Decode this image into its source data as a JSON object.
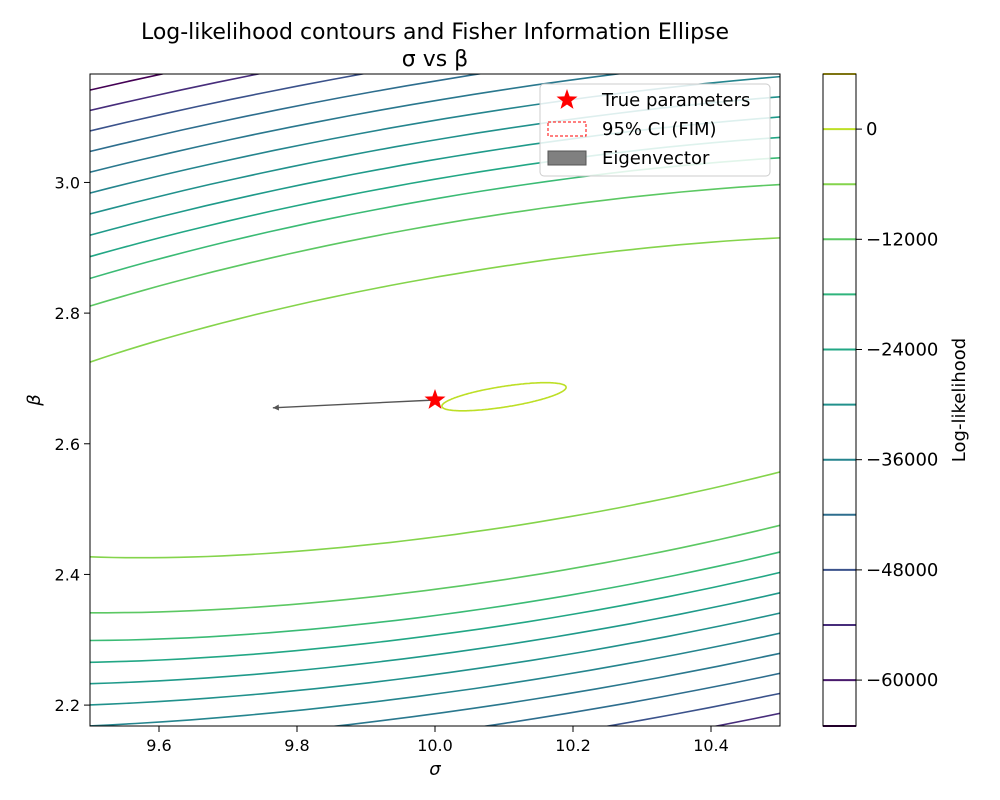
{
  "chart_data": {
    "type": "contour",
    "title": "Log-likelihood contours and Fisher Information Ellipse",
    "subtitle": "σ vs β",
    "xlabel": "σ",
    "ylabel": "β",
    "xlim": [
      9.5,
      10.5
    ],
    "ylim": [
      2.168,
      3.166
    ],
    "x_ticks": [
      "9.6",
      "9.8",
      "10.0",
      "10.2",
      "10.4"
    ],
    "y_ticks": [
      "2.2",
      "2.4",
      "2.6",
      "2.8",
      "3.0"
    ],
    "grid": false,
    "legend_position": "top-right",
    "legend": [
      {
        "label": "True parameters",
        "marker": "star",
        "color": "#ff0000"
      },
      {
        "label": "95% CI (FIM)",
        "marker": "dashed-box",
        "color": "#ff0000"
      },
      {
        "label": "Eigenvector",
        "marker": "filled-box",
        "color": "#808080"
      }
    ],
    "true_parameters": {
      "sigma": 10.0,
      "beta": 2.667
    },
    "eigenvector": {
      "from": [
        10.0,
        2.667
      ],
      "to": [
        9.765,
        2.655
      ],
      "color": "#555555"
    },
    "contours": {
      "center": {
        "sigma": 10.1,
        "beta": 2.672
      },
      "levels": [
        {
          "value": -3000,
          "color": "#bddf26",
          "sigma_half_width": 0.09,
          "beta_half_width": 0.016
        },
        {
          "value": -6000,
          "color": "#84d44b",
          "sigma_half_width": 0.9,
          "beta_half_width": 0.2
        },
        {
          "value": -10000,
          "color": "#5cc863",
          "sigma_half_width": 1.1,
          "beta_half_width": 0.28
        },
        {
          "value": -14000,
          "color": "#3bbb75",
          "sigma_half_width": 1.2,
          "beta_half_width": 0.32
        },
        {
          "value": -18000,
          "color": "#22a785",
          "sigma_half_width": 1.3,
          "beta_half_width": 0.35
        },
        {
          "value": -22000,
          "color": "#1f9a8a",
          "sigma_half_width": 1.4,
          "beta_half_width": 0.38
        },
        {
          "value": -26000,
          "color": "#21918c",
          "sigma_half_width": 1.5,
          "beta_half_width": 0.41
        },
        {
          "value": -30000,
          "color": "#25858e",
          "sigma_half_width": 1.6,
          "beta_half_width": 0.44
        },
        {
          "value": -34000,
          "color": "#2a788e",
          "sigma_half_width": 1.7,
          "beta_half_width": 0.47
        },
        {
          "value": -38000,
          "color": "#2e6e8e",
          "sigma_half_width": 1.8,
          "beta_half_width": 0.5
        },
        {
          "value": -44000,
          "color": "#3b528b",
          "sigma_half_width": 1.9,
          "beta_half_width": 0.53
        },
        {
          "value": -52000,
          "color": "#472d7b",
          "sigma_half_width": 2.0,
          "beta_half_width": 0.56
        },
        {
          "value": -60000,
          "color": "#440154",
          "sigma_half_width": 2.1,
          "beta_half_width": 0.59
        }
      ]
    },
    "colorbar": {
      "label": "Log-likelihood",
      "range": [
        -65000,
        6000
      ],
      "tick_labels": [
        "0",
        "−12000",
        "−24000",
        "−36000",
        "−48000",
        "−60000"
      ],
      "tick_values": [
        0,
        -12000,
        -24000,
        -36000,
        -48000,
        -60000
      ],
      "levels": [
        {
          "value": 6000,
          "color": "#fde725"
        },
        {
          "value": 0,
          "color": "#bddf26"
        },
        {
          "value": -6000,
          "color": "#84d44b"
        },
        {
          "value": -12000,
          "color": "#5cc863"
        },
        {
          "value": -18000,
          "color": "#2fb47c"
        },
        {
          "value": -24000,
          "color": "#22a785"
        },
        {
          "value": -30000,
          "color": "#21918c"
        },
        {
          "value": -36000,
          "color": "#25848e"
        },
        {
          "value": -42000,
          "color": "#2e6e8e"
        },
        {
          "value": -48000,
          "color": "#3b528b"
        },
        {
          "value": -54000,
          "color": "#472d7b"
        },
        {
          "value": -60000,
          "color": "#481a6c"
        },
        {
          "value": -65000,
          "color": "#440154"
        }
      ]
    }
  }
}
